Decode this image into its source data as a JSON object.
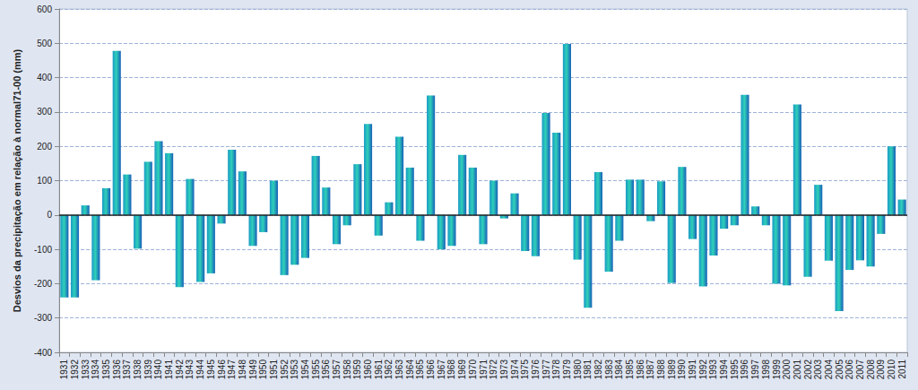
{
  "chart_data": {
    "type": "bar",
    "y_label": "Desvios da precipitação em relação à normal71-00 (mm)",
    "categories": [
      "1931",
      "1932",
      "1933",
      "1934",
      "1935",
      "1936",
      "1937",
      "1938",
      "1939",
      "1940",
      "1941",
      "1942",
      "1943",
      "1944",
      "1945",
      "1946",
      "1947",
      "1948",
      "1949",
      "1950",
      "1951",
      "1952",
      "1953",
      "1954",
      "1955",
      "1956",
      "1957",
      "1958",
      "1959",
      "1960",
      "1961",
      "1962",
      "1963",
      "1964",
      "1965",
      "1966",
      "1967",
      "1968",
      "1969",
      "1970",
      "1971",
      "1972",
      "1973",
      "1974",
      "1975",
      "1976",
      "1977",
      "1978",
      "1979",
      "1980",
      "1981",
      "1982",
      "1983",
      "1984",
      "1985",
      "1986",
      "1987",
      "1988",
      "1989",
      "1990",
      "1991",
      "1992",
      "1993",
      "1994",
      "1995",
      "1996",
      "1997",
      "1998",
      "1999",
      "2000",
      "2001",
      "2002",
      "2003",
      "2004",
      "2005",
      "2006",
      "2007",
      "2008",
      "2009",
      "2010",
      "2011"
    ],
    "values": [
      -240,
      -240,
      28,
      -190,
      78,
      478,
      118,
      -98,
      155,
      215,
      180,
      -210,
      105,
      -195,
      -170,
      -25,
      190,
      127,
      -90,
      -50,
      100,
      -175,
      -145,
      -125,
      172,
      80,
      -85,
      -30,
      148,
      265,
      -60,
      37,
      228,
      138,
      -75,
      348,
      -100,
      -90,
      175,
      138,
      -85,
      100,
      -10,
      63,
      -105,
      -120,
      297,
      240,
      498,
      -130,
      -270,
      125,
      -165,
      -75,
      103,
      103,
      -18,
      98,
      -198,
      140,
      -70,
      -208,
      -118,
      -40,
      -30,
      350,
      25,
      -30,
      -200,
      -205,
      322,
      -180,
      88,
      -133,
      -280,
      -160,
      -132,
      -150,
      -55,
      200,
      45
    ],
    "color": "#1a9ac6",
    "ylim": [
      -400,
      600
    ],
    "yticks": [
      -400,
      -300,
      -200,
      -100,
      0,
      100,
      200,
      300,
      400,
      500,
      600
    ],
    "grid": true
  }
}
